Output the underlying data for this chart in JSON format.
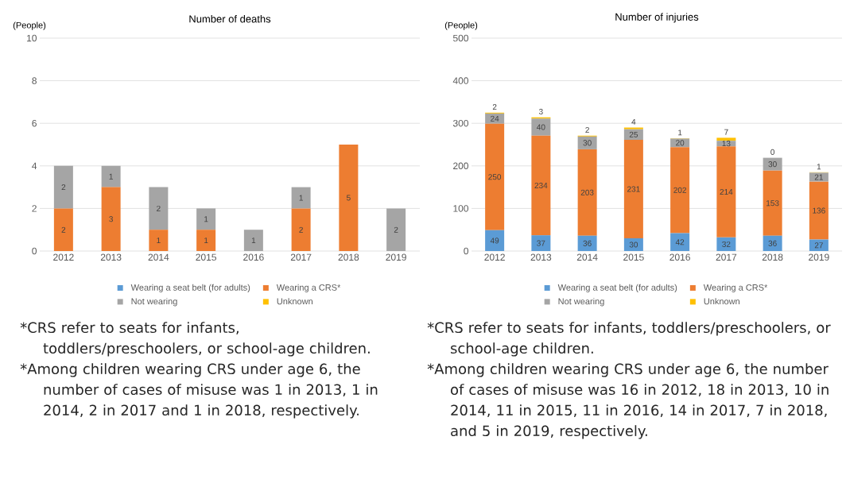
{
  "chart_data": [
    {
      "type": "bar",
      "title": "Number of deaths",
      "ylabel": "(People)",
      "stacked": true,
      "grid": "y",
      "legend": "bottom",
      "categories": [
        "2012",
        "2013",
        "2014",
        "2015",
        "2016",
        "2017",
        "2018",
        "2019"
      ],
      "ylim": [
        0,
        10
      ],
      "yticks": [
        0,
        2,
        4,
        6,
        8,
        10
      ],
      "series": [
        {
          "name": "Wearing a seat belt (for adults)",
          "color": "#5b9bd5",
          "values": [
            0,
            0,
            0,
            0,
            0,
            0,
            0,
            0
          ],
          "value_labels": [
            null,
            null,
            null,
            null,
            null,
            null,
            null,
            null
          ]
        },
        {
          "name": "Wearing a CRS*",
          "color": "#ed7d31",
          "values": [
            2,
            3,
            1,
            1,
            0,
            2,
            5,
            0
          ],
          "value_labels": [
            "2",
            "3",
            "1",
            "1",
            null,
            "2",
            "5",
            null
          ]
        },
        {
          "name": "Not wearing",
          "color": "#a5a5a5",
          "values": [
            2,
            1,
            2,
            1,
            1,
            1,
            0,
            2
          ],
          "value_labels": [
            "2",
            "1",
            "2",
            "1",
            "1",
            "1",
            null,
            "2"
          ]
        },
        {
          "name": "Unknown",
          "color": "#ffc000",
          "values": [
            0,
            0,
            0,
            0,
            0,
            0,
            0,
            0
          ],
          "value_labels": [
            null,
            null,
            null,
            null,
            null,
            null,
            null,
            null
          ]
        }
      ],
      "annotations": [
        "*CRS refer to seats for infants, toddlers/preschoolers, or school-age children.",
        "*Among children wearing CRS under age 6, the number of cases of misuse was 1 in 2013, 1 in 2014, 2 in 2017 and 1 in 2018, respectively."
      ]
    },
    {
      "type": "bar",
      "title": "Number of injuries",
      "ylabel": "(People)",
      "stacked": true,
      "grid": "y",
      "legend": "bottom",
      "data_labels": true,
      "categories": [
        "2012",
        "2013",
        "2014",
        "2015",
        "2016",
        "2017",
        "2018",
        "2019"
      ],
      "ylim": [
        0,
        500
      ],
      "yticks": [
        0,
        100,
        200,
        300,
        400,
        500
      ],
      "series": [
        {
          "name": "Wearing a seat belt (for adults)",
          "color": "#5b9bd5",
          "values": [
            49,
            37,
            36,
            30,
            42,
            32,
            36,
            27
          ]
        },
        {
          "name": "Wearing a CRS*",
          "color": "#ed7d31",
          "values": [
            250,
            234,
            203,
            231,
            202,
            214,
            153,
            136
          ]
        },
        {
          "name": "Not wearing",
          "color": "#a5a5a5",
          "values": [
            24,
            40,
            30,
            25,
            20,
            13,
            30,
            21
          ]
        },
        {
          "name": "Unknown",
          "color": "#ffc000",
          "values": [
            2,
            3,
            2,
            4,
            1,
            7,
            0,
            1
          ]
        }
      ],
      "annotations": [
        "*CRS refer to seats for infants, toddlers/preschoolers, or school-age children.",
        "*Among children wearing CRS under age 6, the number of cases of misuse was 16 in 2012, 18 in 2013, 10 in 2014, 11 in 2015, 11 in 2016, 14 in 2017, 7 in 2018, and 5 in 2019, respectively."
      ]
    }
  ]
}
